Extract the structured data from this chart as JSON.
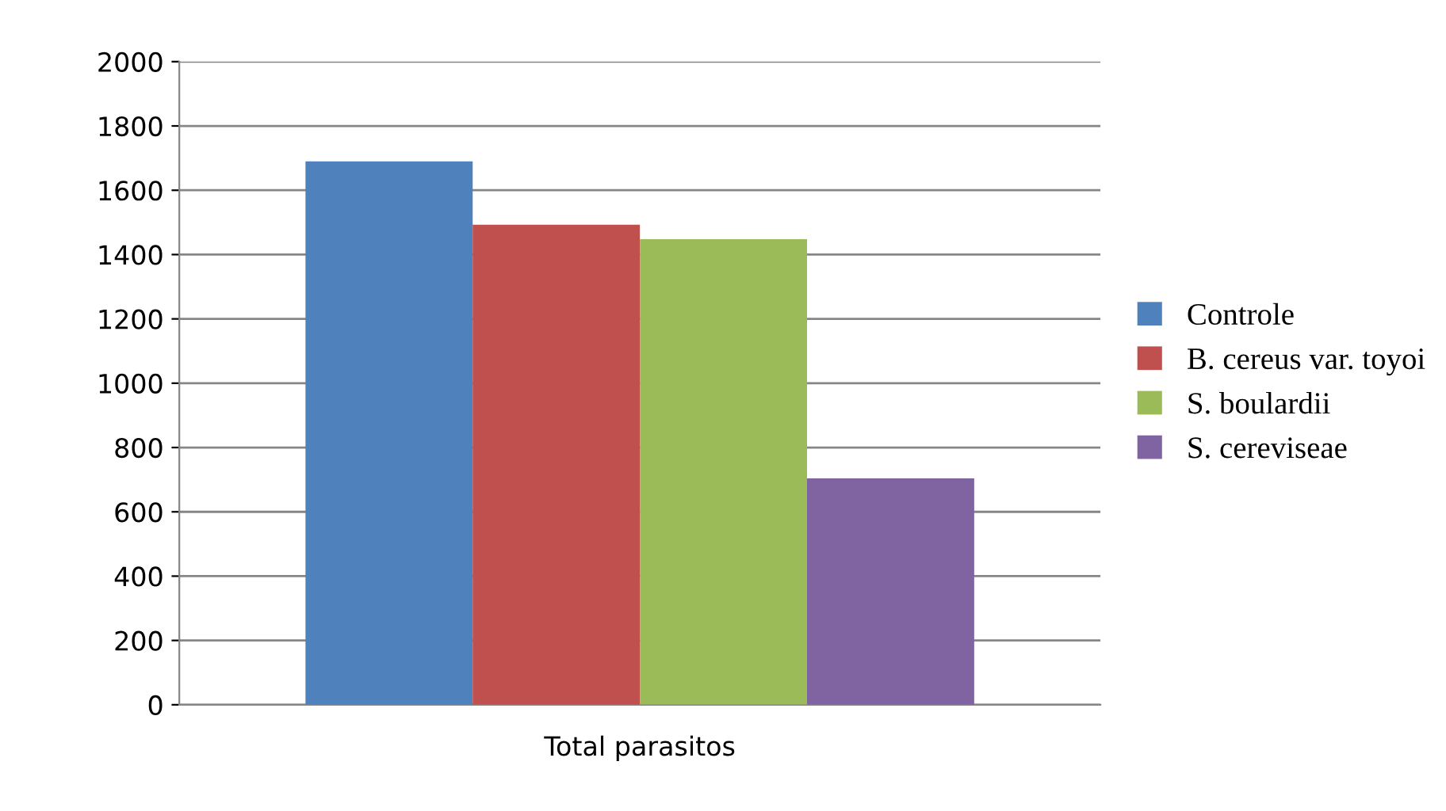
{
  "chart_data": {
    "type": "bar",
    "categories": [
      "Total parasitos"
    ],
    "series": [
      {
        "name": "Controle",
        "color": "#4f81bd",
        "values": [
          1690
        ]
      },
      {
        "name": "B. cereus var. toyoi",
        "color": "#c0504d",
        "values": [
          1493
        ]
      },
      {
        "name": "S. boulardii",
        "color": "#9bbb59",
        "values": [
          1448
        ]
      },
      {
        "name": "S. cereviseae",
        "color": "#8064a2",
        "values": [
          704
        ]
      }
    ],
    "ylim": [
      0,
      2000
    ],
    "yticks": [
      0,
      200,
      400,
      600,
      800,
      1000,
      1200,
      1400,
      1600,
      1800,
      2000
    ],
    "grid": "y",
    "legend": "right"
  }
}
